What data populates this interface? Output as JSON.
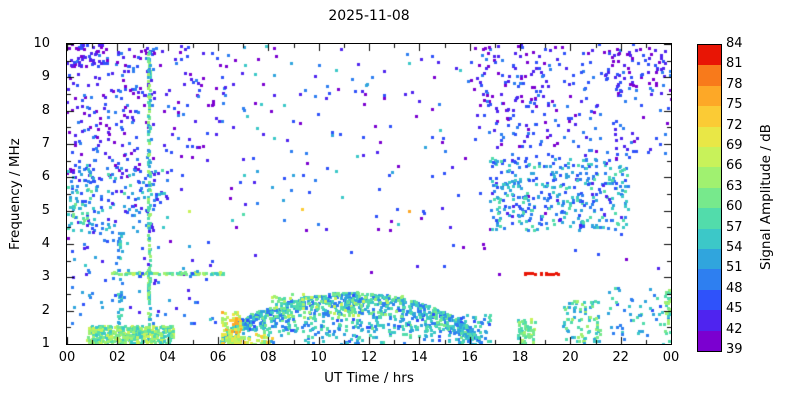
{
  "chart_data": {
    "type": "scatter",
    "title": "2025-11-08",
    "xlabel": "UT Time / hrs",
    "ylabel": "Frequency / MHz",
    "xlim": [
      0,
      24
    ],
    "ylim": [
      1,
      10
    ],
    "background": "#ffffff",
    "frame_color": "#000000",
    "point_size": 3,
    "seed": 20251108,
    "xticks": {
      "values": [
        0,
        2,
        4,
        6,
        8,
        10,
        12,
        14,
        16,
        18,
        20,
        22,
        24
      ],
      "labels": [
        "00",
        "02",
        "04",
        "06",
        "08",
        "10",
        "12",
        "14",
        "16",
        "18",
        "20",
        "22",
        "00"
      ],
      "minor_step": 1
    },
    "yticks": {
      "values": [
        1,
        2,
        3,
        4,
        5,
        6,
        7,
        8,
        9,
        10
      ],
      "labels": [
        "1",
        "2",
        "3",
        "4",
        "5",
        "6",
        "7",
        "8",
        "9",
        "10"
      ],
      "minor_step": 0.5
    },
    "colorbar": {
      "label": "Signal Amplitude / dB",
      "min": 39,
      "max": 84,
      "tick_step": 3,
      "tick_labels": [
        "39",
        "42",
        "45",
        "48",
        "51",
        "54",
        "57",
        "60",
        "63",
        "66",
        "69",
        "72",
        "75",
        "78",
        "81",
        "84"
      ],
      "band_colors": [
        "#7b00d0",
        "#4f24ef",
        "#2f52fa",
        "#2e7ff0",
        "#30a5dd",
        "#3cc8c8",
        "#52dcab",
        "#77e98c",
        "#a0f170",
        "#c8f25a",
        "#e9e746",
        "#fbcb35",
        "#fda827",
        "#f87a1b",
        "#e81505"
      ]
    },
    "clusters": [
      {
        "type": "rect",
        "t": [
          0,
          24
        ],
        "f": [
          3,
          10
        ],
        "n": 110,
        "amp": [
          39,
          48
        ]
      },
      {
        "type": "rect",
        "t": [
          0,
          3.5
        ],
        "f": [
          6,
          10
        ],
        "n": 210,
        "amp": [
          39,
          51
        ]
      },
      {
        "type": "rect",
        "t": [
          0,
          1.5
        ],
        "f": [
          9.2,
          10
        ],
        "n": 40,
        "amp": [
          39,
          46
        ]
      },
      {
        "type": "rect",
        "t": [
          3.5,
          7
        ],
        "f": [
          6.5,
          10
        ],
        "n": 70,
        "amp": [
          39,
          51
        ]
      },
      {
        "type": "rect",
        "t": [
          0,
          4
        ],
        "f": [
          4.3,
          6.3
        ],
        "n": 160,
        "amp": [
          43,
          58
        ]
      },
      {
        "type": "rect",
        "t": [
          0,
          1
        ],
        "f": [
          4.5,
          6.5
        ],
        "n": 30,
        "amp": [
          51,
          63
        ]
      },
      {
        "type": "vline",
        "t": 2.1,
        "tw": 0.15,
        "f": [
          1,
          4.4
        ],
        "n": 45,
        "amp": [
          48,
          60
        ]
      },
      {
        "type": "vline",
        "t": 3.25,
        "tw": 0.08,
        "f": [
          1,
          9.8
        ],
        "n": 150,
        "amp": [
          51,
          66
        ]
      },
      {
        "type": "hline",
        "f": 3.12,
        "fw": 0.06,
        "t": [
          1.8,
          6.3
        ],
        "n": 85,
        "amp": [
          54,
          69
        ]
      },
      {
        "type": "rect",
        "t": [
          0.8,
          4.2
        ],
        "f": [
          1,
          1.55
        ],
        "n": 380,
        "amp": [
          54,
          69
        ]
      },
      {
        "type": "rect",
        "t": [
          0,
          6
        ],
        "f": [
          1.6,
          4.2
        ],
        "n": 70,
        "amp": [
          42,
          56
        ]
      },
      {
        "type": "rect",
        "t": [
          7,
          16
        ],
        "f": [
          6.5,
          10
        ],
        "n": 65,
        "amp": [
          39,
          57
        ]
      },
      {
        "type": "rect",
        "t": [
          6.5,
          16
        ],
        "f": [
          4.5,
          6.3
        ],
        "n": 25,
        "amp": [
          45,
          58
        ]
      },
      {
        "type": "dome",
        "t": [
          6.1,
          16.4
        ],
        "base": 1.0,
        "peak": 2.55,
        "shape": 0.55,
        "bias": 0.3,
        "n": 980,
        "amp": [
          47,
          62
        ]
      },
      {
        "type": "rect",
        "t": [
          6.15,
          6.9
        ],
        "f": [
          1,
          2.0
        ],
        "n": 70,
        "amp": [
          64,
          78
        ]
      },
      {
        "type": "rect",
        "t": [
          6.3,
          8.2
        ],
        "f": [
          1,
          1.3
        ],
        "n": 60,
        "amp": [
          62,
          74
        ]
      },
      {
        "type": "rect",
        "t": [
          8,
          13.5
        ],
        "f": [
          1.8,
          2.5
        ],
        "n": 110,
        "amp": [
          56,
          69
        ]
      },
      {
        "type": "rect",
        "t": [
          8,
          15.5
        ],
        "f": [
          1,
          1.6
        ],
        "n": 110,
        "amp": [
          47,
          60
        ]
      },
      {
        "type": "rect",
        "t": [
          15.5,
          16.9
        ],
        "f": [
          1,
          1.9
        ],
        "n": 55,
        "amp": [
          47,
          60
        ]
      },
      {
        "type": "rect",
        "t": [
          16.8,
          22.3
        ],
        "f": [
          4.4,
          6.6
        ],
        "n": 380,
        "amp": [
          44,
          60
        ]
      },
      {
        "type": "rect",
        "t": [
          16,
          24
        ],
        "f": [
          6.6,
          10
        ],
        "n": 220,
        "amp": [
          39,
          51
        ]
      },
      {
        "type": "rect",
        "t": [
          16.5,
          19
        ],
        "f": [
          7.8,
          10
        ],
        "n": 55,
        "amp": [
          39,
          49
        ]
      },
      {
        "type": "rect",
        "t": [
          21.3,
          23.8
        ],
        "f": [
          8.6,
          10
        ],
        "n": 45,
        "amp": [
          39,
          48
        ]
      },
      {
        "type": "rect",
        "t": [
          17.9,
          18.6
        ],
        "f": [
          1,
          1.75
        ],
        "n": 60,
        "amp": [
          56,
          67
        ]
      },
      {
        "type": "rect",
        "t": [
          19.7,
          21.2
        ],
        "f": [
          1,
          2.3
        ],
        "n": 85,
        "amp": [
          51,
          66
        ]
      },
      {
        "type": "rect",
        "t": [
          21.5,
          24
        ],
        "f": [
          1,
          2.7
        ],
        "n": 55,
        "amp": [
          47,
          60
        ]
      },
      {
        "type": "vline",
        "t": 23.85,
        "tw": 0.2,
        "f": [
          1.3,
          2.7
        ],
        "n": 25,
        "amp": [
          54,
          66
        ]
      },
      {
        "type": "hline",
        "f": 3.12,
        "fw": 0.05,
        "t": [
          18.15,
          19.55
        ],
        "n": 18,
        "amp": [
          81,
          85
        ]
      },
      {
        "type": "points",
        "pts": [
          [
            9.35,
            5.05,
            74
          ],
          [
            13.6,
            5.0,
            75
          ],
          [
            4.85,
            5.0,
            68
          ]
        ]
      }
    ]
  }
}
